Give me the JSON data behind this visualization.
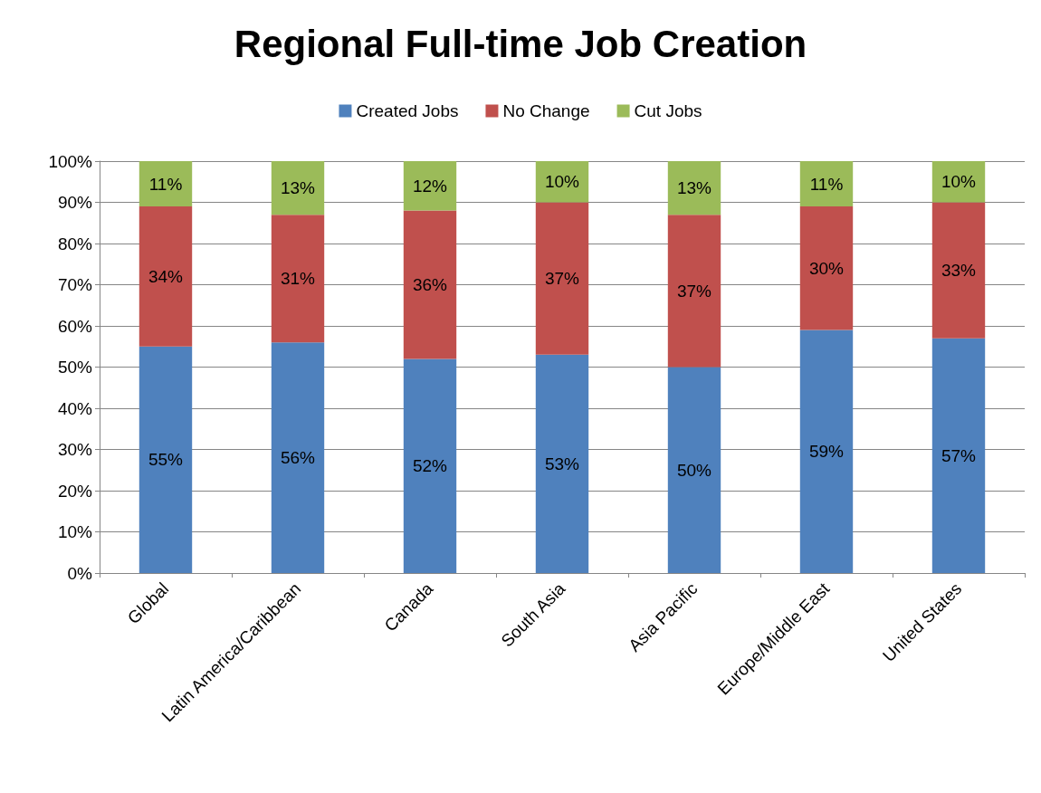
{
  "chart_data": {
    "type": "bar",
    "title": "Regional Full-time Job Creation",
    "stacked": true,
    "legend": "top",
    "grid": "y",
    "categories": [
      "Global",
      "Latin America/Caribbean",
      "Canada",
      "South Asia",
      "Asia Pacific",
      "Europe/Middle East",
      "United States"
    ],
    "ylim": [
      0,
      100
    ],
    "yticks": [
      {
        "value": 0,
        "label": "0%"
      },
      {
        "value": 10,
        "label": "10%"
      },
      {
        "value": 20,
        "label": "20%"
      },
      {
        "value": 30,
        "label": "30%"
      },
      {
        "value": 40,
        "label": "40%"
      },
      {
        "value": 50,
        "label": "50%"
      },
      {
        "value": 60,
        "label": "60%"
      },
      {
        "value": 70,
        "label": "70%"
      },
      {
        "value": 80,
        "label": "80%"
      },
      {
        "value": 90,
        "label": "90%"
      },
      {
        "value": 100,
        "label": "100%"
      }
    ],
    "series": [
      {
        "name": "Created Jobs",
        "color": "#4f81bd",
        "values": [
          55,
          56,
          52,
          53,
          50,
          59,
          57
        ],
        "value_labels": [
          "55%",
          "56%",
          "52%",
          "53%",
          "50%",
          "59%",
          "57%"
        ]
      },
      {
        "name": "No Change",
        "color": "#c0504d",
        "values": [
          34,
          31,
          36,
          37,
          37,
          30,
          33
        ],
        "value_labels": [
          "34%",
          "31%",
          "36%",
          "37%",
          "37%",
          "30%",
          "33%"
        ]
      },
      {
        "name": "Cut Jobs",
        "color": "#9bbb59",
        "values": [
          11,
          13,
          12,
          10,
          13,
          11,
          10
        ],
        "value_labels": [
          "11%",
          "13%",
          "12%",
          "10%",
          "13%",
          "11%",
          "10%"
        ]
      }
    ]
  }
}
